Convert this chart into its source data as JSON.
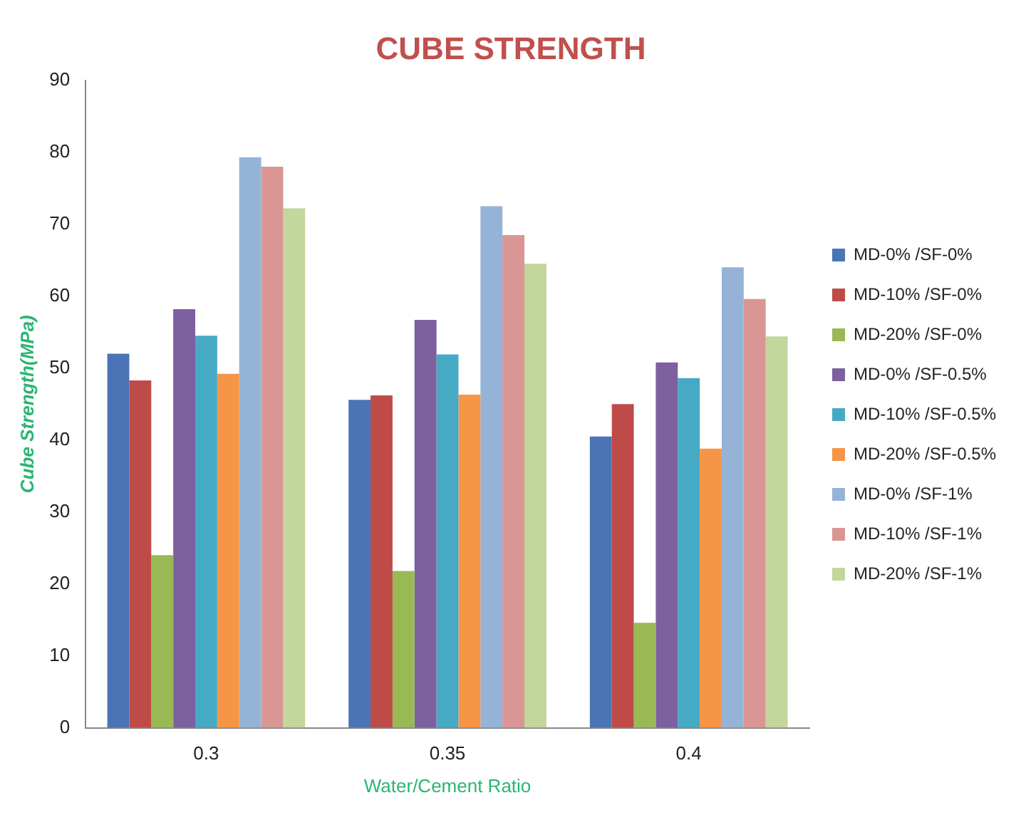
{
  "chart_data": {
    "type": "bar",
    "title": "CUBE STRENGTH",
    "xlabel": "Water/Cement Ratio",
    "ylabel": "Cube Strength(MPa)",
    "categories": [
      "0.3",
      "0.35",
      "0.4"
    ],
    "series": [
      {
        "name": "MD-0% /SF-0%",
        "color": "#4a74b5",
        "values": [
          52,
          45.6,
          40.5
        ]
      },
      {
        "name": "MD-10% /SF-0%",
        "color": "#be4b48",
        "values": [
          48.3,
          46.2,
          45
        ]
      },
      {
        "name": "MD-20% /SF-0%",
        "color": "#98b954",
        "values": [
          24,
          21.8,
          14.6
        ]
      },
      {
        "name": "MD-0% /SF-0.5%",
        "color": "#7d60a0",
        "values": [
          58.2,
          56.7,
          50.8
        ]
      },
      {
        "name": "MD-10% /SF-0.5%",
        "color": "#46aac5",
        "values": [
          54.5,
          51.9,
          48.6
        ]
      },
      {
        "name": "MD-20% /SF-0.5%",
        "color": "#f69546",
        "values": [
          49.2,
          46.3,
          38.8
        ]
      },
      {
        "name": "MD-0% /SF-1%",
        "color": "#95b3d7",
        "values": [
          79.3,
          72.5,
          64
        ]
      },
      {
        "name": "MD-10% /SF-1%",
        "color": "#d99694",
        "values": [
          78,
          68.5,
          59.6
        ]
      },
      {
        "name": "MD-20% /SF-1%",
        "color": "#c3d69b",
        "values": [
          72.2,
          64.5,
          54.4
        ]
      }
    ],
    "ylim": [
      0,
      90
    ],
    "yticks": [
      0,
      10,
      20,
      30,
      40,
      50,
      60,
      70,
      80,
      90
    ],
    "grid": false,
    "legend": "right"
  }
}
